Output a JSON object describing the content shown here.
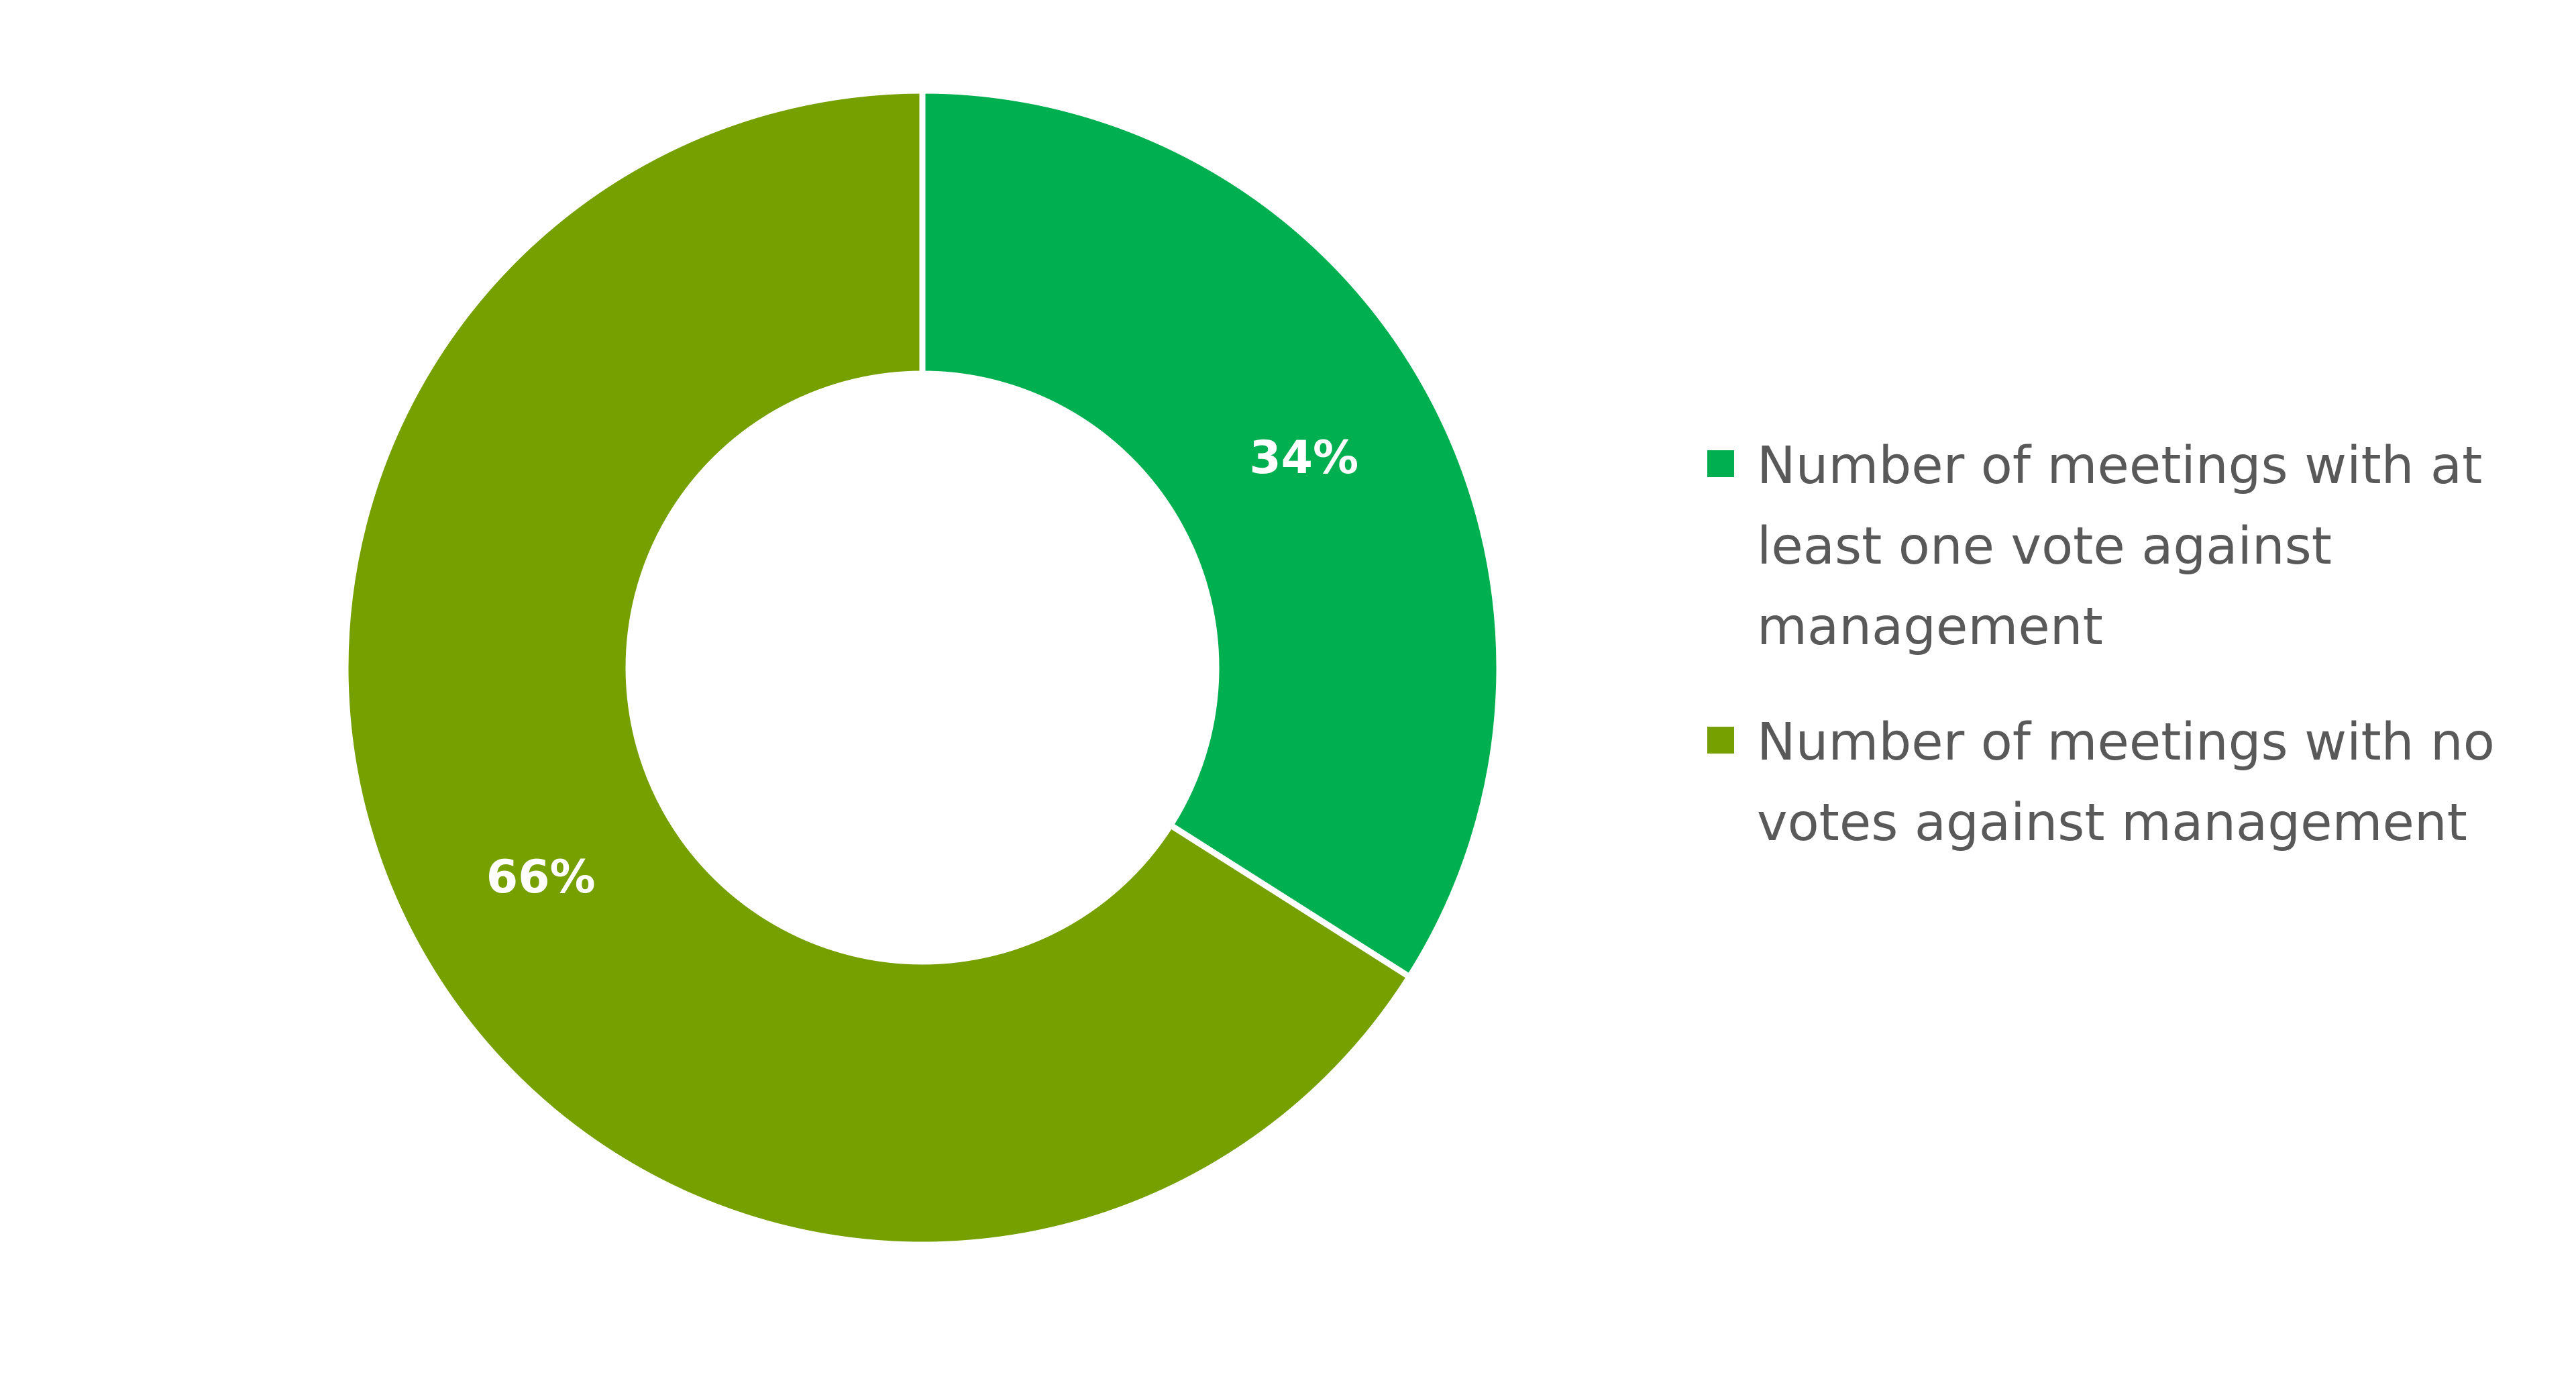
{
  "chart_data": {
    "type": "pie",
    "subtype": "donut",
    "series": [
      {
        "name": "Number of meetings with at least one vote against management",
        "value": 34,
        "label": "34%",
        "color": "#00b050"
      },
      {
        "name": "Number of meetings with no votes against management",
        "value": 66,
        "label": "66%",
        "color": "#76a000"
      }
    ],
    "start_angle_deg": 0,
    "direction": "clockwise",
    "legend_position": "right"
  }
}
